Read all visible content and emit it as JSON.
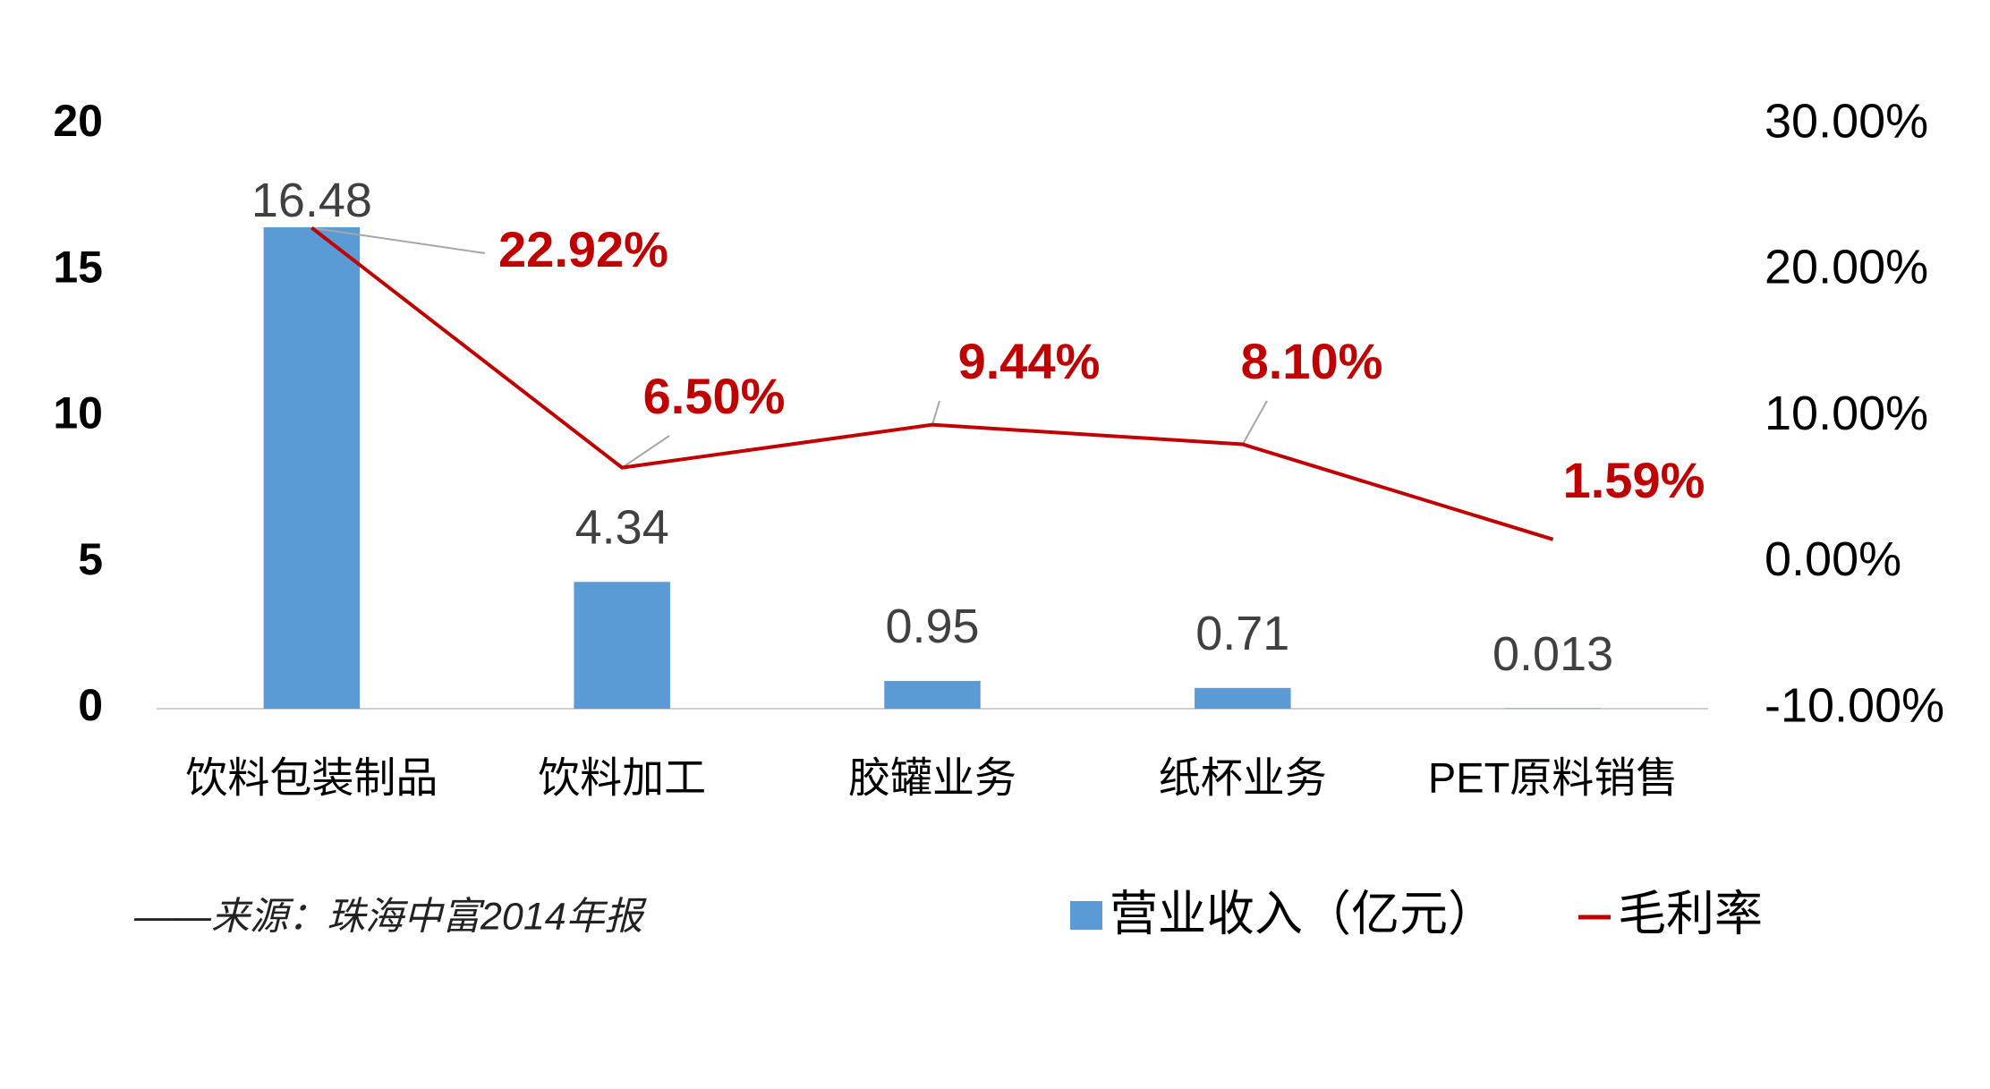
{
  "chart_data": {
    "type": "bar",
    "categories": [
      "饮料包装制品",
      "饮料加工",
      "胶罐业务",
      "纸杯业务",
      "PET原料销售"
    ],
    "series": [
      {
        "name": "营业收入（亿元）",
        "type": "bar",
        "color": "#5b9bd5",
        "values": [
          16.48,
          4.34,
          0.95,
          0.71,
          0.013
        ]
      },
      {
        "name": "毛利率",
        "type": "line",
        "axis": "y2",
        "color": "#c00000",
        "values": [
          22.92,
          6.5,
          9.44,
          8.1,
          1.59
        ],
        "value_labels": [
          "22.92%",
          "6.50%",
          "9.44%",
          "8.10%",
          "1.59%"
        ]
      }
    ],
    "ylim": [
      0,
      20
    ],
    "yticks": [
      0,
      5,
      10,
      15,
      20
    ],
    "y2lim": [
      -10,
      30
    ],
    "y2ticks": [
      {
        "value": -10,
        "label": "-10.00%"
      },
      {
        "value": 0,
        "label": "0.00%"
      },
      {
        "value": 10,
        "label": "10.00%"
      },
      {
        "value": 20,
        "label": "20.00%"
      },
      {
        "value": 30,
        "label": "30.00%"
      }
    ],
    "source": "——来源：珠海中富2014年报",
    "legend": "bottom-right"
  }
}
